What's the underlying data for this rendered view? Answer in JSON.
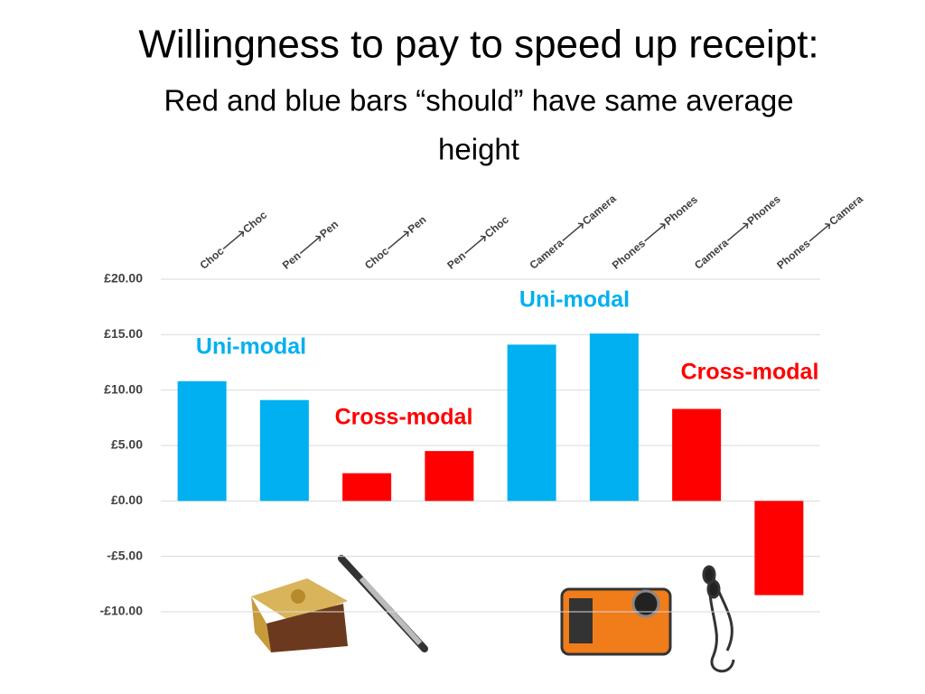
{
  "chart_data": {
    "type": "bar",
    "title": "Willingness to pay to speed up receipt:",
    "subtitle": [
      "Red and blue bars “should” have same average",
      "height"
    ],
    "categories": [
      "Choc🡒Choc",
      "Pen🡒Pen",
      "Choc🡒Pen",
      "Pen🡒Choc",
      "Camera🡒Camera",
      "Phones🡒Phones",
      "Camera🡒Phones",
      "Phones🡒Camera"
    ],
    "values": [
      10.8,
      9.1,
      2.5,
      4.5,
      14.1,
      15.1,
      8.3,
      -8.5
    ],
    "colors": [
      "#00b0f0",
      "#00b0f0",
      "#ff0000",
      "#ff0000",
      "#00b0f0",
      "#00b0f0",
      "#ff0000",
      "#ff0000"
    ],
    "ylim": [
      -10,
      20
    ],
    "yticks": [
      {
        "value": -10,
        "label": "-£10.00"
      },
      {
        "value": -5,
        "label": "-£5.00"
      },
      {
        "value": 0,
        "label": "£0.00"
      },
      {
        "value": 5,
        "label": "£5.00"
      },
      {
        "value": 10,
        "label": "£10.00"
      },
      {
        "value": 15,
        "label": "£15.00"
      },
      {
        "value": 20,
        "label": "£20.00"
      }
    ],
    "grid": true,
    "annotations": [
      {
        "text": "Uni-modal",
        "color": "#00b0f0"
      },
      {
        "text": "Cross-modal",
        "color": "#ff0000"
      },
      {
        "text": "Uni-modal",
        "color": "#00b0f0"
      },
      {
        "text": "Cross-modal",
        "color": "#ff0000"
      }
    ]
  }
}
